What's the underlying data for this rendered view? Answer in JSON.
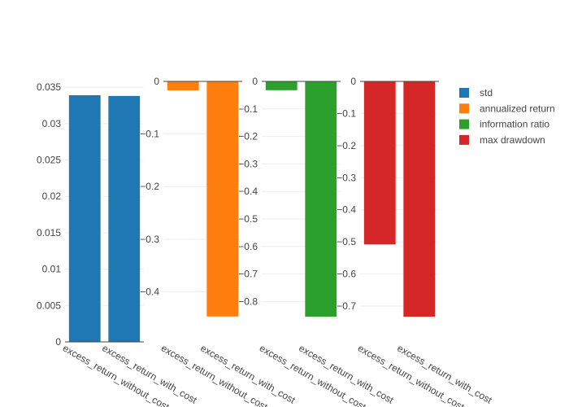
{
  "chart_data": [
    {
      "type": "bar",
      "categories": [
        "excess_return_without_cost",
        "excess_return_with_cost"
      ],
      "series": [
        {
          "name": "std",
          "values": [
            0.0339,
            0.0338
          ],
          "color": "#1f77b4"
        }
      ],
      "ylim": [
        0,
        0.0358
      ],
      "yticks": [
        0,
        0.005,
        0.01,
        0.015,
        0.02,
        0.025,
        0.03,
        0.035
      ],
      "ytick_labels": [
        "0",
        "0.005",
        "0.01",
        "0.015",
        "0.02",
        "0.025",
        "0.03",
        "0.035"
      ]
    },
    {
      "type": "bar",
      "categories": [
        "excess_return_without_cost",
        "excess_return_with_cost"
      ],
      "series": [
        {
          "name": "annualized return",
          "values": [
            -0.017,
            -0.447
          ],
          "color": "#ff7f0e"
        }
      ],
      "ylim": [
        -0.4705,
        0
      ],
      "yticks": [
        0,
        -0.1,
        -0.2,
        -0.3,
        -0.4
      ],
      "ytick_labels": [
        "0",
        "−0.1",
        "−0.2",
        "−0.3",
        "−0.4"
      ]
    },
    {
      "type": "bar",
      "categories": [
        "excess_return_without_cost",
        "excess_return_with_cost"
      ],
      "series": [
        {
          "name": "information ratio",
          "values": [
            -0.032,
            -0.855
          ],
          "color": "#2ca02c"
        }
      ],
      "ylim": [
        -0.8993,
        0
      ],
      "yticks": [
        0,
        -0.1,
        -0.2,
        -0.3,
        -0.4,
        -0.5,
        -0.6,
        -0.7,
        -0.8
      ],
      "ytick_labels": [
        "0",
        "−0.1",
        "−0.2",
        "−0.3",
        "−0.4",
        "−0.5",
        "−0.6",
        "−0.7",
        "−0.8"
      ]
    },
    {
      "type": "bar",
      "categories": [
        "excess_return_without_cost",
        "excess_return_with_cost"
      ],
      "series": [
        {
          "name": "max drawdown",
          "values": [
            -0.508,
            -0.733
          ],
          "color": "#d62728"
        }
      ],
      "ylim": [
        -0.771,
        0
      ],
      "yticks": [
        0,
        -0.1,
        -0.2,
        -0.3,
        -0.4,
        -0.5,
        -0.6,
        -0.7
      ],
      "ytick_labels": [
        "0",
        "−0.1",
        "−0.2",
        "−0.3",
        "−0.4",
        "−0.5",
        "−0.6",
        "−0.7"
      ]
    }
  ],
  "legend": {
    "placement": "right",
    "items": [
      {
        "label": "std",
        "color": "#1f77b4"
      },
      {
        "label": "annualized return",
        "color": "#ff7f0e"
      },
      {
        "label": "information ratio",
        "color": "#2ca02c"
      },
      {
        "label": "max drawdown",
        "color": "#d62728"
      }
    ]
  }
}
